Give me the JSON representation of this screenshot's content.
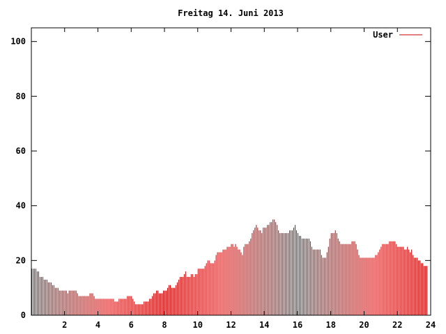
{
  "chart_data": {
    "type": "bar",
    "title": "Freitag 14. Juni 2013",
    "xlabel": "",
    "ylabel": "",
    "xlim": [
      0,
      24
    ],
    "ylim": [
      0,
      105
    ],
    "x_ticks": [
      2,
      4,
      6,
      8,
      10,
      12,
      14,
      16,
      18,
      20,
      22,
      24
    ],
    "y_ticks": [
      0,
      20,
      40,
      60,
      80,
      100
    ],
    "grid": false,
    "legend_position": "top-right",
    "series": [
      {
        "name": "User",
        "color": "#cc0000",
        "interval_minutes": 5,
        "values": [
          17,
          17,
          17,
          17,
          16,
          16,
          14,
          14,
          14,
          13,
          13,
          13,
          12,
          12,
          12,
          11,
          11,
          10,
          10,
          10,
          9,
          9,
          9,
          9,
          9,
          9,
          8,
          9,
          9,
          9,
          9,
          9,
          9,
          8,
          7,
          7,
          7,
          7,
          7,
          7,
          7,
          7,
          8,
          8,
          8,
          7,
          6,
          6,
          6,
          6,
          6,
          6,
          6,
          6,
          6,
          6,
          6,
          6,
          6,
          6,
          5,
          5,
          5,
          6,
          6,
          6,
          6,
          6,
          6,
          7,
          7,
          7,
          7,
          6,
          5,
          4,
          4,
          4,
          4,
          4,
          4,
          5,
          5,
          5,
          5,
          6,
          6,
          7,
          8,
          8,
          9,
          9,
          8,
          8,
          8,
          9,
          9,
          9,
          10,
          11,
          11,
          10,
          10,
          10,
          11,
          12,
          13,
          14,
          14,
          14,
          15,
          16,
          14,
          14,
          14,
          15,
          15,
          14,
          15,
          15,
          17,
          17,
          17,
          17,
          17,
          18,
          19,
          20,
          20,
          19,
          19,
          19,
          20,
          22,
          23,
          23,
          23,
          23,
          24,
          24,
          24,
          25,
          25,
          25,
          26,
          26,
          25,
          26,
          25,
          24,
          24,
          23,
          22,
          25,
          26,
          26,
          26,
          27,
          28,
          30,
          31,
          32,
          33,
          32,
          31,
          31,
          30,
          32,
          32,
          32,
          33,
          33,
          34,
          34,
          35,
          35,
          34,
          33,
          31,
          30,
          30,
          30,
          30,
          30,
          30,
          30,
          31,
          31,
          31,
          32,
          33,
          31,
          30,
          29,
          29,
          28,
          28,
          28,
          28,
          28,
          28,
          27,
          25,
          24,
          24,
          24,
          24,
          24,
          24,
          22,
          21,
          21,
          21,
          23,
          25,
          28,
          30,
          30,
          30,
          31,
          30,
          28,
          27,
          26,
          26,
          26,
          26,
          26,
          26,
          26,
          26,
          27,
          27,
          27,
          26,
          24,
          22,
          21,
          21,
          21,
          21,
          21,
          21,
          21,
          21,
          21,
          21,
          21,
          22,
          22,
          23,
          24,
          25,
          26,
          26,
          26,
          26,
          26,
          27,
          27,
          27,
          27,
          27,
          26,
          25,
          25,
          25,
          25,
          25,
          24,
          24,
          25,
          24,
          23,
          24,
          22,
          21,
          21,
          21,
          20,
          20,
          19,
          19,
          18,
          18,
          18
        ]
      }
    ]
  }
}
